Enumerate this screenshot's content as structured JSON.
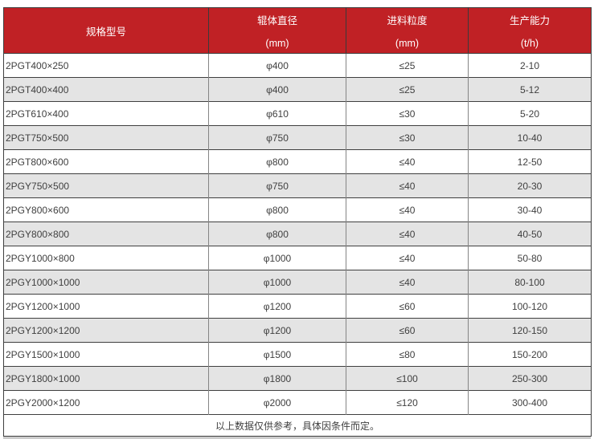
{
  "table": {
    "columns": [
      {
        "title": "规格型号",
        "subtitle": ""
      },
      {
        "title": "辊体直径",
        "subtitle": "(mm)"
      },
      {
        "title": "进料粒度",
        "subtitle": "(mm)"
      },
      {
        "title": "生产能力",
        "subtitle": "(t/h)"
      }
    ],
    "rows": [
      [
        "2PGT400×250",
        "φ400",
        "≤25",
        "2-10"
      ],
      [
        "2PGT400×400",
        "φ400",
        "≤25",
        "5-12"
      ],
      [
        "2PGT610×400",
        "φ610",
        "≤30",
        "5-20"
      ],
      [
        "2PGT750×500",
        "φ750",
        "≤30",
        "10-40"
      ],
      [
        "2PGT800×600",
        "φ800",
        "≤40",
        "12-50"
      ],
      [
        "2PGY750×500",
        "φ750",
        "≤40",
        "20-30"
      ],
      [
        "2PGY800×600",
        "φ800",
        "≤40",
        "30-40"
      ],
      [
        "2PGY800×800",
        "φ800",
        "≤40",
        "40-50"
      ],
      [
        "2PGY1000×800",
        "φ1000",
        "≤40",
        "50-80"
      ],
      [
        "2PGY1000×1000",
        "φ1000",
        "≤40",
        "80-100"
      ],
      [
        "2PGY1200×1000",
        "φ1200",
        "≤60",
        "100-120"
      ],
      [
        "2PGY1200×1200",
        "φ1200",
        "≤60",
        "120-150"
      ],
      [
        "2PGY1500×1000",
        "φ1500",
        "≤80",
        "150-200"
      ],
      [
        "2PGY1800×1000",
        "φ1800",
        "≤100",
        "250-300"
      ],
      [
        "2PGY2000×1200",
        "φ2000",
        "≤120",
        "300-400"
      ]
    ],
    "footer_note": "以上数据仅供参考，具体因条件而定。",
    "colors": {
      "header_bg": "#c02125",
      "header_text": "#ffffff",
      "row_alt_bg": "#e4e4e4",
      "border_horizontal": "#3f3f3f",
      "border_vertical": "#858585"
    }
  }
}
